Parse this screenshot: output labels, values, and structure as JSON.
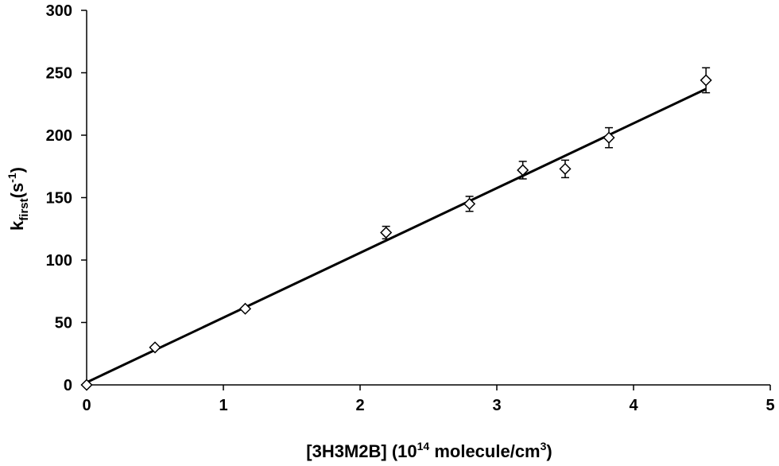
{
  "chart_data": {
    "type": "scatter",
    "title": "",
    "xlabel": {
      "prefix": "[3H3M2B] (10",
      "sup1": "14",
      "mid": " molecule/cm",
      "sup2": "3",
      "suffix": ")"
    },
    "ylabel": {
      "base": "k",
      "sub": "first",
      "mid": "(s",
      "sup": "-1",
      "suffix": ")"
    },
    "xlim": [
      0,
      5
    ],
    "ylim": [
      0,
      300
    ],
    "x_ticks": [
      "0",
      "1",
      "2",
      "3",
      "4",
      "5"
    ],
    "y_ticks": [
      "0",
      "50",
      "100",
      "150",
      "200",
      "250",
      "300"
    ],
    "grid": false,
    "series": [
      {
        "marker": "diamond-open",
        "points": [
          {
            "x": 0.0,
            "y": 0,
            "err": 0
          },
          {
            "x": 0.5,
            "y": 30,
            "err": 0
          },
          {
            "x": 1.16,
            "y": 61,
            "err": 0
          },
          {
            "x": 2.19,
            "y": 122,
            "err": 5
          },
          {
            "x": 2.8,
            "y": 145,
            "err": 6
          },
          {
            "x": 3.19,
            "y": 172,
            "err": 7
          },
          {
            "x": 3.5,
            "y": 173,
            "err": 7
          },
          {
            "x": 3.82,
            "y": 198,
            "err": 8
          },
          {
            "x": 4.53,
            "y": 244,
            "err": 10
          }
        ]
      }
    ],
    "fit_line": {
      "x": [
        0,
        4.53
      ],
      "y": [
        2,
        237
      ]
    }
  }
}
